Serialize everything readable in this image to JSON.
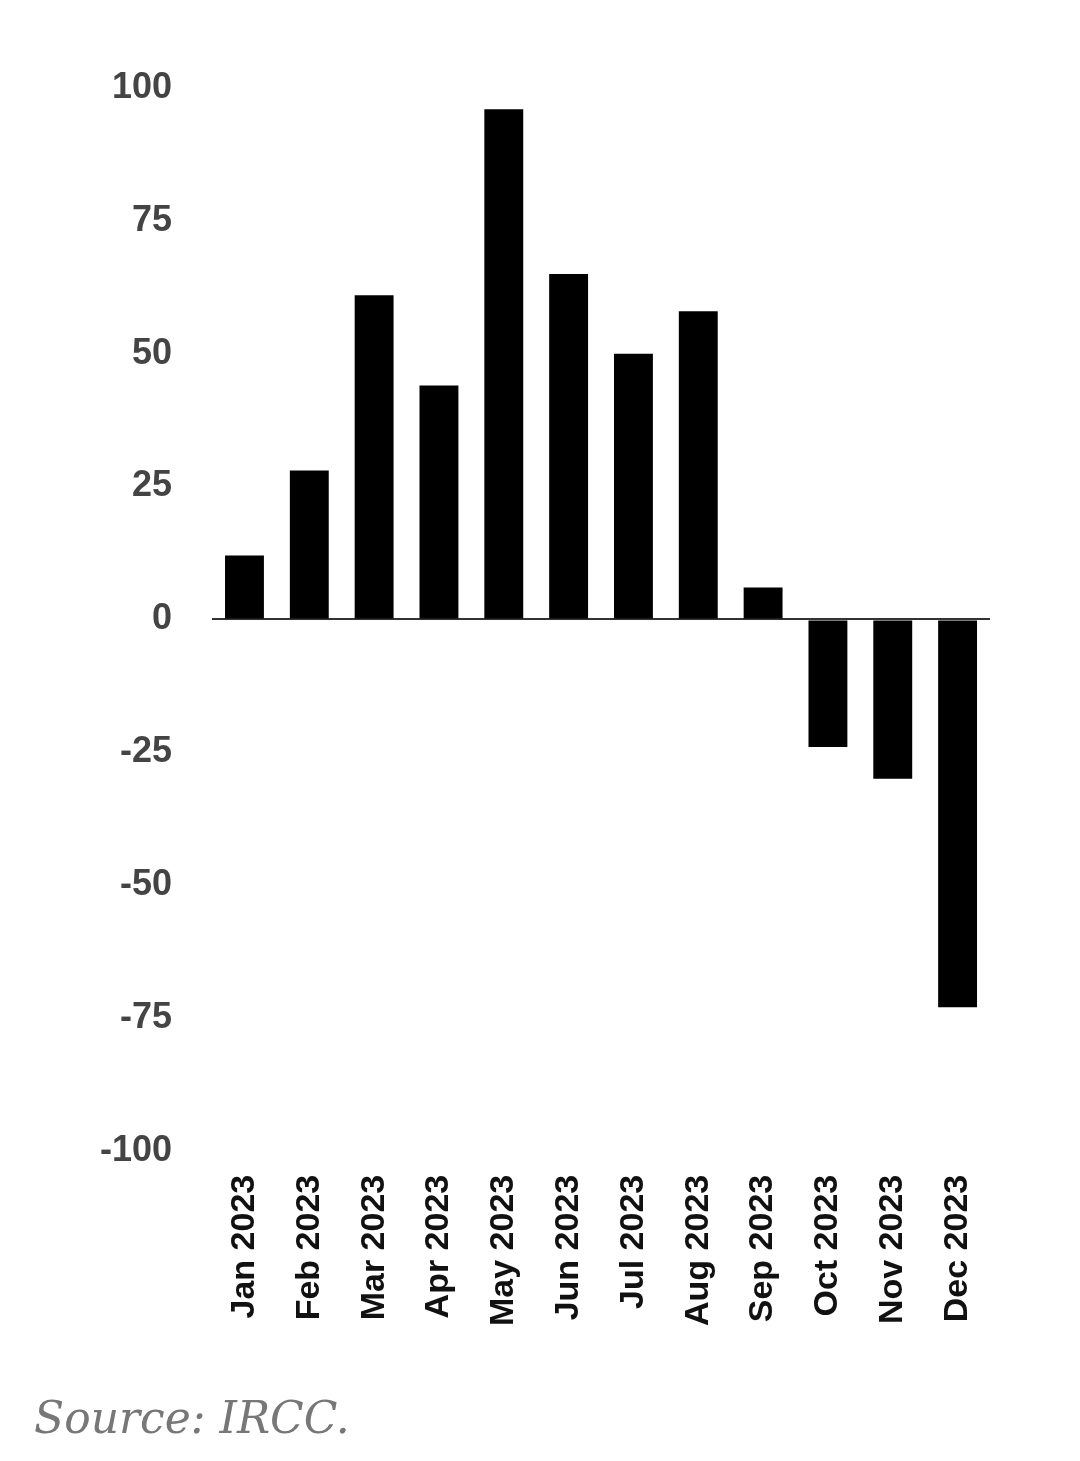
{
  "chart_data": {
    "type": "bar",
    "categories": [
      "Jan 2023",
      "Feb 2023",
      "Mar 2023",
      "Apr 2023",
      "May 2023",
      "Jun 2023",
      "Jul 2023",
      "Aug 2023",
      "Sep 2023",
      "Oct 2023",
      "Nov 2023",
      "Dec 2023"
    ],
    "values": [
      12,
      28,
      61,
      44,
      96,
      65,
      50,
      58,
      6,
      -24,
      -30,
      -73
    ],
    "color": "#000000",
    "ylim": [
      -100,
      100
    ],
    "yticks": [
      -100,
      -75,
      -50,
      -25,
      0,
      25,
      50,
      75,
      100
    ],
    "annotations": [
      "Source: IRCC."
    ]
  }
}
